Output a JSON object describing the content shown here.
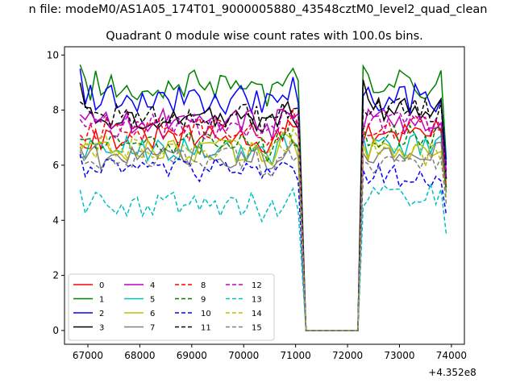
{
  "figure": {
    "suptitle": "n file: modeM0/AS1A05_174T01_9000005880_43548cztM0_level2_quad_clean"
  },
  "chart_data": {
    "type": "line",
    "title": "Quadrant 0 module wise count rates with 100.0s bins.",
    "xlabel": "",
    "ylabel": "",
    "x_offset_label": "+4.352e8",
    "xlim": [
      66550,
      74250
    ],
    "ylim": [
      -0.5,
      10.3
    ],
    "x_ticks": [
      67000,
      68000,
      69000,
      70000,
      71000,
      72000,
      73000,
      74000
    ],
    "x_tick_labels": [
      "67000",
      "68000",
      "69000",
      "70000",
      "71000",
      "72000",
      "73000",
      "74000"
    ],
    "y_ticks": [
      0,
      2,
      4,
      6,
      8,
      10
    ],
    "y_tick_labels": [
      "0",
      "2",
      "4",
      "6",
      "8",
      "10"
    ],
    "grid": false,
    "legend": {
      "location": "lower-left",
      "columns": 4
    },
    "gap": {
      "drop_start": 71100,
      "drop_end": 71200,
      "rise_start": 72200,
      "rise_end": 72300,
      "gap_value": 0
    },
    "segment1": {
      "x_start": 66850,
      "x_end": 71100,
      "step": 100
    },
    "segment2": {
      "x_start": 72300,
      "x_end": 73900,
      "step": 100
    },
    "series": [
      {
        "name": "0",
        "color": "#ff0000",
        "dash": "solid",
        "level1": 7.0,
        "level2": 7.2,
        "end": 5.2
      },
      {
        "name": "1",
        "color": "#008000",
        "dash": "solid",
        "level1": 8.9,
        "level2": 8.9,
        "end": 6.2,
        "start1": 9.65,
        "start2": 9.6
      },
      {
        "name": "2",
        "color": "#0000ff",
        "dash": "solid",
        "level1": 8.4,
        "level2": 8.4,
        "end": 6.0,
        "start1": 9.5
      },
      {
        "name": "3",
        "color": "#000000",
        "dash": "solid",
        "level1": 7.7,
        "level2": 8.0,
        "end": 5.5,
        "start1": 9.0,
        "start2": 9.1
      },
      {
        "name": "4",
        "color": "#bf00bf",
        "dash": "solid",
        "level1": 7.6,
        "level2": 7.6,
        "end": 5.8
      },
      {
        "name": "5",
        "color": "#00bfbf",
        "dash": "solid",
        "level1": 6.6,
        "level2": 6.7,
        "end": 5.0
      },
      {
        "name": "6",
        "color": "#bfbf00",
        "dash": "solid",
        "level1": 6.5,
        "level2": 6.6,
        "end": 5.0
      },
      {
        "name": "7",
        "color": "#808080",
        "dash": "solid",
        "level1": 6.3,
        "level2": 6.5,
        "end": 5.0
      },
      {
        "name": "8",
        "color": "#ff0000",
        "dash": "dashed",
        "level1": 7.3,
        "level2": 7.4,
        "end": 5.2
      },
      {
        "name": "9",
        "color": "#008000",
        "dash": "dashed",
        "level1": 6.8,
        "level2": 7.0,
        "end": 5.1
      },
      {
        "name": "10",
        "color": "#0000ff",
        "dash": "dashed",
        "level1": 5.8,
        "level2": 5.6,
        "end": 4.2,
        "start1": 6.4
      },
      {
        "name": "11",
        "color": "#000000",
        "dash": "dashed",
        "level1": 7.8,
        "level2": 8.0,
        "end": 5.5,
        "start1": 8.3
      },
      {
        "name": "12",
        "color": "#bf00bf",
        "dash": "dashed",
        "level1": 7.4,
        "level2": 7.6,
        "end": 5.5
      },
      {
        "name": "13",
        "color": "#00bfbf",
        "dash": "dashed",
        "level1": 4.6,
        "level2": 4.9,
        "end": 3.5,
        "start1": 5.1
      },
      {
        "name": "14",
        "color": "#bfbf00",
        "dash": "dashed",
        "level1": 6.6,
        "level2": 6.4,
        "end": 4.8
      },
      {
        "name": "15",
        "color": "#808080",
        "dash": "dashed",
        "level1": 6.2,
        "level2": 6.1,
        "end": 4.6,
        "start1": 6.5
      }
    ]
  }
}
